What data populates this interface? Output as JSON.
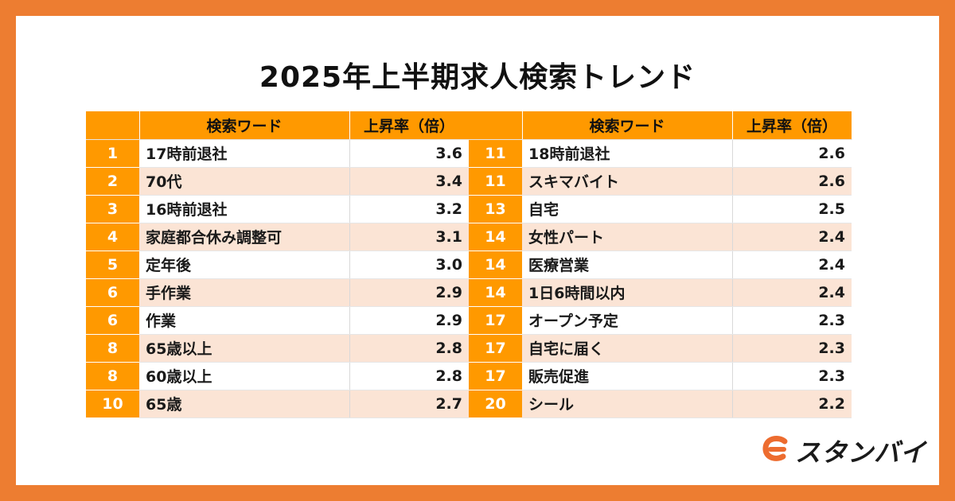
{
  "title": "2025年上半期求人検索トレンド",
  "headers": {
    "rank": "",
    "word": "検索ワード",
    "rate": "上昇率（倍）"
  },
  "left_rows": [
    {
      "rank": "1",
      "word": "17時前退社",
      "rate": "3.6"
    },
    {
      "rank": "2",
      "word": "70代",
      "rate": "3.4"
    },
    {
      "rank": "3",
      "word": "16時前退社",
      "rate": "3.2"
    },
    {
      "rank": "4",
      "word": "家庭都合休み調整可",
      "rate": "3.1"
    },
    {
      "rank": "5",
      "word": "定年後",
      "rate": "3.0"
    },
    {
      "rank": "6",
      "word": "手作業",
      "rate": "2.9"
    },
    {
      "rank": "6",
      "word": "作業",
      "rate": "2.9"
    },
    {
      "rank": "8",
      "word": "65歳以上",
      "rate": "2.8"
    },
    {
      "rank": "8",
      "word": "60歳以上",
      "rate": "2.8"
    },
    {
      "rank": "10",
      "word": "65歳",
      "rate": "2.7"
    }
  ],
  "right_rows": [
    {
      "rank": "11",
      "word": "18時前退社",
      "rate": "2.6"
    },
    {
      "rank": "11",
      "word": "スキマバイト",
      "rate": "2.6"
    },
    {
      "rank": "13",
      "word": "自宅",
      "rate": "2.5"
    },
    {
      "rank": "14",
      "word": "女性パート",
      "rate": "2.4"
    },
    {
      "rank": "14",
      "word": "医療営業",
      "rate": "2.4"
    },
    {
      "rank": "14",
      "word": "1日6時間以内",
      "rate": "2.4"
    },
    {
      "rank": "17",
      "word": "オープン予定",
      "rate": "2.3"
    },
    {
      "rank": "17",
      "word": "自宅に届く",
      "rate": "2.3"
    },
    {
      "rank": "17",
      "word": "販売促進",
      "rate": "2.3"
    },
    {
      "rank": "20",
      "word": "シール",
      "rate": "2.2"
    }
  ],
  "logo": {
    "text": "スタンバイ",
    "icon": "stanby-logo-icon"
  },
  "colors": {
    "frame": "#ed7d31",
    "header": "#ff9900",
    "rank_cell": "#ff9900",
    "stripe": "#fbe4d5",
    "logo_accent": "#ed6c2f"
  }
}
